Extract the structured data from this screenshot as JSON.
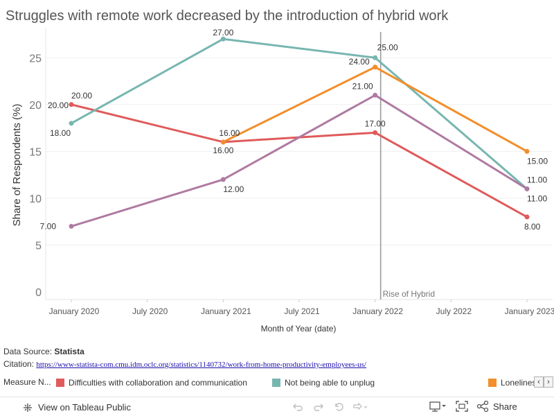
{
  "chart_data": {
    "type": "line",
    "title": "Struggles with remote work decreased by the introduction of hybrid work",
    "xlabel": "Month of Year (date)",
    "ylabel": "Share of Respondents (%)",
    "x": [
      "January 2020",
      "January 2021",
      "January 2022",
      "January 2023"
    ],
    "x_ticks": [
      "January 2020",
      "July 2020",
      "January 2021",
      "July 2021",
      "January 2022",
      "July 2022",
      "January 2023"
    ],
    "y_ticks": [
      0,
      5,
      10,
      15,
      20,
      25
    ],
    "ylim": [
      0,
      28
    ],
    "grid": true,
    "series": [
      {
        "name": "Difficulties with collaboration and communication",
        "color": "#e05a5b",
        "x": [
          "January 2020",
          "January 2021",
          "January 2022",
          "January 2023"
        ],
        "values": [
          20,
          16,
          17,
          8
        ],
        "labels": [
          "20.00",
          "16.00",
          "17.00",
          "8.00"
        ]
      },
      {
        "name": "Not being able to unplug",
        "color": "#77b6b0",
        "x": [
          "January 2020",
          "January 2021",
          "January 2022",
          "January 2023"
        ],
        "values": [
          18,
          27,
          25,
          11
        ],
        "labels": [
          "18.00",
          "27.00",
          "25.00",
          "11.00"
        ]
      },
      {
        "name": "Loneliness",
        "color": "#f28e2b",
        "x": [
          "January 2021",
          "January 2022",
          "January 2023"
        ],
        "values": [
          16,
          24,
          15
        ],
        "labels": [
          "16.00",
          "24.00",
          "15.00"
        ]
      },
      {
        "name": "",
        "color": "#af7aa1",
        "x": [
          "January 2020",
          "January 2021",
          "January 2022",
          "January 2023"
        ],
        "values": [
          7,
          12,
          21,
          11
        ],
        "labels": [
          "7.00",
          "12.00",
          "21.00",
          "11.00"
        ]
      }
    ],
    "extra_labels": [
      "20.00"
    ],
    "reference_line": {
      "x": "January 2022",
      "label": "Rise of Hybrid",
      "color": "#9a9a9a"
    }
  },
  "source": {
    "label": "Data Source:",
    "value": "Statista"
  },
  "citation": {
    "label": "Citation:",
    "url": "https://www-statista-com.cmu.idm.oclc.org/statistics/1140732/work-from-home-productivity-employees-us/"
  },
  "legend": {
    "title": "Measure N...",
    "items": [
      {
        "label": "Difficulties with collaboration and communication",
        "color": "#e05a5b"
      },
      {
        "label": "Not being able to unplug",
        "color": "#77b6b0"
      },
      {
        "label": "Loneliness",
        "color": "#f28e2b"
      }
    ],
    "nav": {
      "prev": "‹",
      "next": "›"
    }
  },
  "toolbar": {
    "view_label": "View on Tableau Public",
    "share_label": "Share",
    "icons": [
      "tableau-logo-icon",
      "undo-icon",
      "redo-icon",
      "revert-icon",
      "forward-icon",
      "download-icon",
      "fullscreen-icon",
      "share-icon"
    ]
  }
}
